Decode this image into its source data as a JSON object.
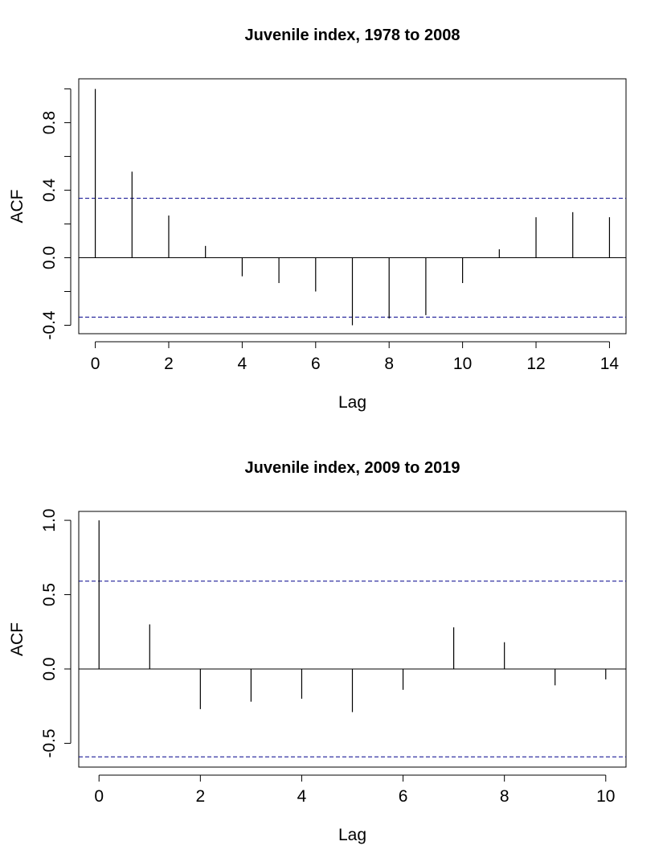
{
  "chart_data": [
    {
      "type": "bar",
      "title": "Juvenile index, 1978 to 2008",
      "xlabel": "Lag",
      "ylabel": "ACF",
      "xlim": [
        -0.45,
        14.45
      ],
      "ylim": [
        -0.45,
        1.06
      ],
      "x_ticks": [
        0,
        2,
        4,
        6,
        8,
        10,
        12,
        14
      ],
      "x_tick_labels": [
        "0",
        "2",
        "4",
        "6",
        "8",
        "10",
        "12",
        "14"
      ],
      "y_ticks": [
        -0.4,
        -0.2,
        0.0,
        0.2,
        0.4,
        0.6,
        0.8,
        1.0
      ],
      "y_tick_labels": [
        "-0.4",
        "",
        "0.0",
        "",
        "0.4",
        "",
        "0.8",
        ""
      ],
      "lags": [
        0,
        1,
        2,
        3,
        4,
        5,
        6,
        7,
        8,
        9,
        10,
        11,
        12,
        13,
        14
      ],
      "values": [
        1.0,
        0.51,
        0.25,
        0.07,
        -0.11,
        -0.15,
        -0.2,
        -0.4,
        -0.36,
        -0.34,
        -0.15,
        0.05,
        0.24,
        0.27,
        0.24
      ],
      "confidence_bound": 0.352,
      "grid": false
    },
    {
      "type": "bar",
      "title": "Juvenile index, 2009 to 2019",
      "xlabel": "Lag",
      "ylabel": "ACF",
      "xlim": [
        -0.4,
        10.4
      ],
      "ylim": [
        -0.66,
        1.06
      ],
      "x_ticks": [
        0,
        2,
        4,
        6,
        8,
        10
      ],
      "x_tick_labels": [
        "0",
        "2",
        "4",
        "6",
        "8",
        "10"
      ],
      "y_ticks": [
        -0.5,
        0.0,
        0.5,
        1.0
      ],
      "y_tick_labels": [
        "-0.5",
        "0.0",
        "0.5",
        "1.0"
      ],
      "lags": [
        0,
        1,
        2,
        3,
        4,
        5,
        6,
        7,
        8,
        9,
        10
      ],
      "values": [
        1.0,
        0.3,
        -0.27,
        -0.22,
        -0.2,
        -0.29,
        -0.14,
        0.28,
        0.18,
        -0.11,
        -0.07
      ],
      "confidence_bound": 0.591,
      "grid": false
    }
  ],
  "colors": {
    "axis": "#000000",
    "spike": "#000000",
    "confidence_line": "#00008B"
  }
}
